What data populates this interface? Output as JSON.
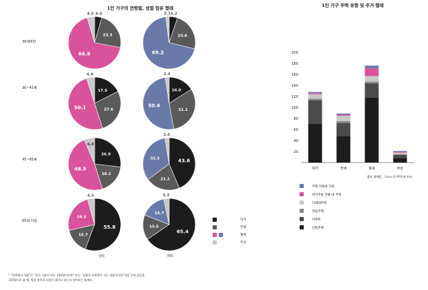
{
  "left_chart": {
    "title": "1인 가구의 연령별, 성별 점유 형태",
    "row_labels": [
      "30세미만",
      "30~45세",
      "45~65세",
      "65세 이상"
    ],
    "col_labels": [
      "남자",
      "여자"
    ],
    "legend": [
      {
        "label": "자가",
        "color": "#1c1c1c"
      },
      {
        "label": "전세",
        "color": "#5a5a5a"
      },
      {
        "label": "월세",
        "color": "#d9539a"
      },
      {
        "label": "무상",
        "color": "#c8c8c8"
      }
    ],
    "note_line1": "* \"100명의 마을\"은 \"한국 사람이 보도 100명이라면\" 또는 \"서울이 100명이 사는 마을이라면\"처럼 전체 집단을",
    "note_line2": "100명으로 볼 때, 특정 항목의 사람이 몇이나 되는지 알아보는 통계다."
  },
  "right_chart": {
    "title": "1인 가구 주택 유형 및 주거 형태",
    "source": "출처: 통계청, 『2015 인구주택 총 조사』",
    "legend": [
      {
        "label": "주택 이외의 거처",
        "color": "#6a7aa8"
      },
      {
        "label": "비거주용 건물 내 주택",
        "color": "#d9539a"
      },
      {
        "label": "다세대주택",
        "color": "#c8c8c8"
      },
      {
        "label": "연립주택",
        "color": "#8a8a8a"
      },
      {
        "label": "아파트",
        "color": "#4a4a4a"
      },
      {
        "label": "단독주택",
        "color": "#1c1c1c"
      }
    ]
  },
  "chart_data": [
    {
      "type": "pie",
      "title": "1인 가구의 연령별, 성별 점유 형태",
      "series_order": [
        "자가",
        "전세",
        "월세",
        "무상"
      ],
      "colors": [
        "#1c1c1c",
        "#5a5a5a",
        "#d9539a",
        "#c8c8c8"
      ],
      "pies": [
        {
          "row": "30세미만",
          "col": "남자",
          "values": [
            4.4,
            23.3,
            66.8,
            4.5
          ],
          "accent": "#d9539a"
        },
        {
          "row": "30세미만",
          "col": "여자",
          "values": [
            5.2,
            23.6,
            69.2,
            2.1
          ],
          "accent": "#6a7aa8"
        },
        {
          "row": "30~45세",
          "col": "남자",
          "values": [
            17.5,
            27.6,
            50.1,
            4.9
          ],
          "accent": "#d9539a"
        },
        {
          "row": "30~45세",
          "col": "여자",
          "values": [
            16.0,
            31.1,
            50.4,
            2.4
          ],
          "accent": "#6a7aa8"
        },
        {
          "row": "45~65세",
          "col": "남자",
          "values": [
            26.9,
            18.2,
            48.5,
            6.4
          ],
          "accent": "#d9539a"
        },
        {
          "row": "45~65세",
          "col": "여자",
          "values": [
            43.6,
            21.2,
            32.5,
            2.6
          ],
          "accent": "#6a7aa8"
        },
        {
          "row": "65세 이상",
          "col": "남자",
          "values": [
            55.8,
            15.7,
            24.3,
            4.3
          ],
          "accent": "#d9539a"
        },
        {
          "row": "65세 이상",
          "col": "여자",
          "values": [
            65.4,
            15.5,
            15.7,
            3.3
          ],
          "accent": "#6a7aa8"
        }
      ]
    },
    {
      "type": "bar",
      "stacked": true,
      "title": "1인 가구 주택 유형 및 주거 형태",
      "categories": [
        "자가",
        "전세",
        "월세",
        "무상"
      ],
      "ylim": [
        0,
        200
      ],
      "yticks": [
        20,
        40,
        60,
        80,
        100,
        120,
        140,
        160,
        180,
        200
      ],
      "series": [
        {
          "name": "단독주택",
          "color": "#1c1c1c",
          "values": [
            70,
            48,
            118,
            8
          ]
        },
        {
          "name": "아파트",
          "color": "#4a4a4a",
          "values": [
            43,
            24,
            26,
            6
          ]
        },
        {
          "name": "연립주택",
          "color": "#8a8a8a",
          "values": [
            3,
            3,
            3,
            1
          ]
        },
        {
          "name": "다세대주택",
          "color": "#c8c8c8",
          "values": [
            8,
            10,
            10,
            3
          ]
        },
        {
          "name": "비거주용 건물 내 주택",
          "color": "#d9539a",
          "values": [
            2,
            2,
            14,
            1
          ]
        },
        {
          "name": "주택 이외의 거처",
          "color": "#6a7aa8",
          "values": [
            2,
            2,
            5,
            2
          ]
        }
      ]
    }
  ]
}
